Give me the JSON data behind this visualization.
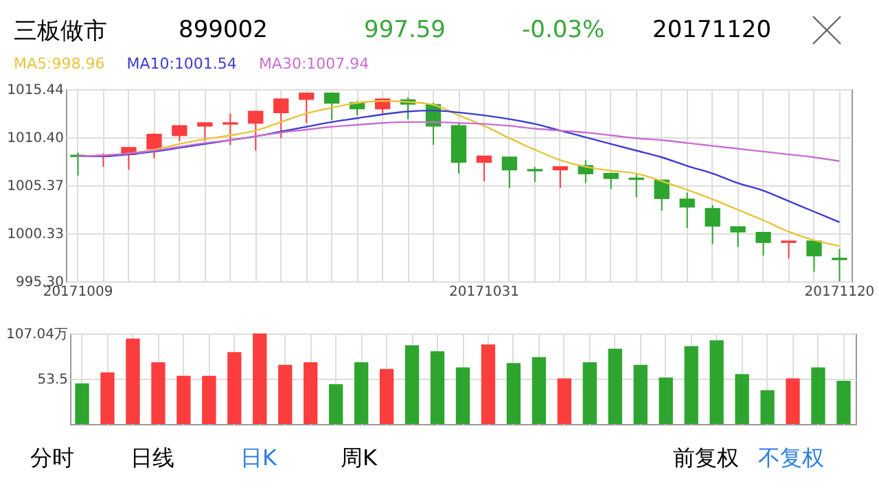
{
  "chart_data": [
    {
      "type": "candlestick",
      "title": "三板做市",
      "annotations": [
        "899002",
        "997.59",
        "-0.03%",
        "20171120"
      ],
      "categories": [
        "20171009",
        null,
        null,
        null,
        null,
        null,
        null,
        null,
        null,
        null,
        null,
        null,
        null,
        null,
        null,
        null,
        "20171031",
        null,
        null,
        null,
        null,
        null,
        null,
        null,
        null,
        null,
        null,
        null,
        null,
        null,
        "20171120"
      ],
      "ohlc": [
        [
          1008.5,
          1008.8,
          1006.4,
          1008.4
        ],
        [
          1008.4,
          1008.7,
          1007.3,
          1008.5
        ],
        [
          1008.6,
          1009.3,
          1007.0,
          1009.3
        ],
        [
          1009.2,
          1010.8,
          1008.2,
          1010.7
        ],
        [
          1010.6,
          1011.7,
          1010.0,
          1011.6
        ],
        [
          1011.6,
          1011.9,
          1010.0,
          1011.9
        ],
        [
          1011.8,
          1012.9,
          1009.6,
          1011.9
        ],
        [
          1011.9,
          1013.1,
          1009.0,
          1013.1
        ],
        [
          1013.0,
          1014.4,
          1010.3,
          1014.4
        ],
        [
          1014.4,
          1015.0,
          1011.9,
          1015.0
        ],
        [
          1015.0,
          1015.0,
          1012.2,
          1014.0
        ],
        [
          1014.0,
          1014.2,
          1012.7,
          1013.4
        ],
        [
          1013.4,
          1014.4,
          1012.9,
          1014.4
        ],
        [
          1014.3,
          1014.6,
          1012.3,
          1013.9
        ],
        [
          1013.8,
          1014.0,
          1009.6,
          1011.6
        ],
        [
          1011.6,
          1011.8,
          1006.6,
          1007.8
        ],
        [
          1007.8,
          1008.4,
          1005.8,
          1008.4
        ],
        [
          1008.3,
          1008.3,
          1005.1,
          1007.0
        ],
        [
          1007.0,
          1007.3,
          1005.7,
          1006.9
        ],
        [
          1007.0,
          1007.3,
          1005.1,
          1007.3
        ],
        [
          1007.4,
          1008.0,
          1005.6,
          1006.6
        ],
        [
          1006.6,
          1006.7,
          1005.0,
          1006.1
        ],
        [
          1006.1,
          1006.5,
          1004.1,
          1006.0
        ],
        [
          1005.9,
          1005.9,
          1002.7,
          1004.0
        ],
        [
          1003.9,
          1004.6,
          1000.9,
          1003.1
        ],
        [
          1002.9,
          1003.3,
          999.2,
          1001.1
        ],
        [
          1001.0,
          1001.0,
          998.9,
          1000.5
        ],
        [
          1000.4,
          1000.4,
          998.0,
          999.4
        ],
        [
          999.4,
          999.5,
          997.7,
          999.5
        ],
        [
          999.5,
          999.6,
          996.3,
          998.0
        ],
        [
          997.7,
          998.7,
          995.3,
          997.59
        ]
      ],
      "colors": [
        "#2ea52e",
        "#fc3d3d",
        "#fc3d3d",
        "#fc3d3d",
        "#fc3d3d",
        "#fc3d3d",
        "#fc3d3d",
        "#fc3d3d",
        "#fc3d3d",
        "#fc3d3d",
        "#2ea52e",
        "#2ea52e",
        "#fc3d3d",
        "#2ea52e",
        "#2ea52e",
        "#2ea52e",
        "#fc3d3d",
        "#2ea52e",
        "#2ea52e",
        "#fc3d3d",
        "#2ea52e",
        "#2ea52e",
        "#2ea52e",
        "#2ea52e",
        "#2ea52e",
        "#2ea52e",
        "#2ea52e",
        "#2ea52e",
        "#fc3d3d",
        "#2ea52e",
        "#2ea52e"
      ],
      "series": [
        {
          "type": "line",
          "name": "MA5:998.96",
          "color": "#e8c43a",
          "values": [
            1008.4,
            1008.5,
            1008.7,
            1009.1,
            1009.7,
            1010.2,
            1010.6,
            1011.1,
            1012.0,
            1012.9,
            1013.5,
            1014.0,
            1014.2,
            1014.1,
            1013.8,
            1012.7,
            1011.6,
            1010.3,
            1009.1,
            1008.0,
            1007.3,
            1006.9,
            1006.6,
            1005.8,
            1004.9,
            1003.9,
            1002.8,
            1001.7,
            1000.5,
            999.6,
            999.0
          ]
        },
        {
          "type": "line",
          "name": "MA10:1001.54",
          "color": "#3c3cd2",
          "values": [
            1008.4,
            1008.4,
            1008.6,
            1008.9,
            1009.3,
            1009.7,
            1010.1,
            1010.5,
            1011.0,
            1011.5,
            1012.0,
            1012.4,
            1012.8,
            1013.1,
            1013.2,
            1013.0,
            1012.7,
            1012.3,
            1011.8,
            1011.1,
            1010.4,
            1009.7,
            1009.0,
            1008.3,
            1007.4,
            1006.6,
            1005.6,
            1004.8,
            1003.7,
            1002.6,
            1001.5
          ]
        },
        {
          "type": "line",
          "name": "MA30:1007.94",
          "color": "#c86ed2",
          "values": [
            1008.4,
            1008.5,
            1008.7,
            1009.0,
            1009.4,
            1009.8,
            1010.1,
            1010.5,
            1010.9,
            1011.2,
            1011.5,
            1011.7,
            1011.9,
            1012.0,
            1012.0,
            1011.9,
            1011.8,
            1011.6,
            1011.3,
            1011.1,
            1010.9,
            1010.6,
            1010.3,
            1010.1,
            1009.8,
            1009.5,
            1009.2,
            1008.9,
            1008.6,
            1008.3,
            1007.9
          ]
        }
      ],
      "ylim": [
        995.3,
        1015.44
      ],
      "yticks": [
        {
          "value": 995.3,
          "label": "995.30"
        },
        1000.33,
        1005.37,
        {
          "value": 1010.4,
          "label": "1010.40"
        },
        1015.44
      ],
      "grid": true,
      "legend": "top left"
    },
    {
      "type": "bar",
      "annotations": [
        "分时",
        "日线",
        "日K",
        "周K",
        "前复权",
        "不复权"
      ],
      "categories": [
        null,
        null,
        null,
        null,
        null,
        null,
        null,
        null,
        null,
        null,
        null,
        null,
        null,
        null,
        null,
        null,
        null,
        null,
        null,
        null,
        null,
        null,
        null,
        null,
        null,
        null,
        null,
        null,
        null,
        null,
        null
      ],
      "values": [
        48,
        61,
        101,
        73,
        57,
        57,
        85,
        107,
        70,
        73,
        47,
        73,
        65,
        93,
        86,
        67,
        94,
        72,
        79,
        54,
        73,
        89,
        70,
        55,
        92,
        99,
        59,
        40,
        54,
        67,
        51
      ],
      "colors": [
        "#2ea52e",
        "#fc3d3d",
        "#fc3d3d",
        "#fc3d3d",
        "#fc3d3d",
        "#fc3d3d",
        "#fc3d3d",
        "#fc3d3d",
        "#fc3d3d",
        "#fc3d3d",
        "#2ea52e",
        "#2ea52e",
        "#fc3d3d",
        "#2ea52e",
        "#2ea52e",
        "#2ea52e",
        "#fc3d3d",
        "#2ea52e",
        "#2ea52e",
        "#fc3d3d",
        "#2ea52e",
        "#2ea52e",
        "#2ea52e",
        "#2ea52e",
        "#2ea52e",
        "#2ea52e",
        "#2ea52e",
        "#2ea52e",
        "#fc3d3d",
        "#2ea52e",
        "#2ea52e"
      ],
      "ylim": [
        0,
        107.04
      ],
      "yticks": [
        {
          "value": 53.52,
          "label": "53.5"
        },
        {
          "value": 107.04,
          "label": "107.04万"
        }
      ],
      "grid": true,
      "tick_labels": "y"
    }
  ]
}
